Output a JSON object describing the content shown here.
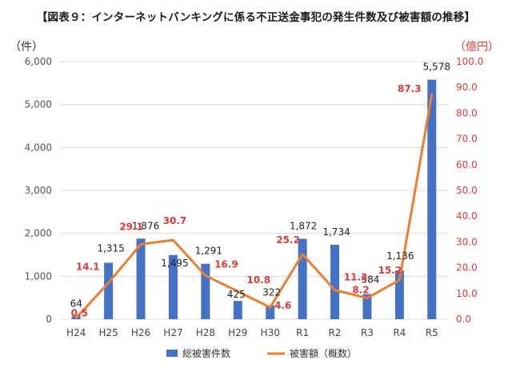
{
  "chart_data": {
    "type": "bar+line",
    "title": "【図表９：インターネットバンキングに係る不正送金事犯の発生件数及び被害額の推移】",
    "categories": [
      "H24",
      "H25",
      "H26",
      "H27",
      "H28",
      "H29",
      "H30",
      "R1",
      "R2",
      "R3",
      "R4",
      "R5"
    ],
    "series": [
      {
        "name": "総被害件数",
        "type": "bar",
        "axis": "left",
        "color": "#4472c4",
        "values": [
          64,
          1315,
          1876,
          1495,
          1291,
          425,
          322,
          1872,
          1734,
          584,
          1136,
          5578
        ],
        "labels": [
          "64",
          "1,315",
          "1,876",
          "1,495",
          "1,291",
          "425",
          "322",
          "1,872",
          "1,734",
          "584",
          "1,136",
          "5,578"
        ]
      },
      {
        "name": "被害額（概数）",
        "type": "line",
        "axis": "right",
        "color": "#ed7d31",
        "values": [
          0.5,
          14.1,
          29.1,
          30.7,
          16.9,
          10.8,
          4.6,
          25.2,
          11.3,
          8.2,
          15.2,
          87.3
        ],
        "labels": [
          "0.5",
          "14.1",
          "29.1",
          "30.7",
          "16.9",
          "10.8",
          "4.6",
          "25.2",
          "11.3",
          "8.2",
          "15.2",
          "87.3"
        ]
      }
    ],
    "left_axis": {
      "unit": "（件）",
      "ylim": [
        0,
        6000
      ],
      "ticks": [
        "0",
        "1,000",
        "2,000",
        "3,000",
        "4,000",
        "5,000",
        "6,000"
      ]
    },
    "right_axis": {
      "unit": "（億円）",
      "ylim": [
        0,
        100
      ],
      "ticks": [
        "0.0",
        "10.0",
        "20.0",
        "30.0",
        "40.0",
        "50.0",
        "60.0",
        "70.0",
        "80.0",
        "90.0",
        "100.0"
      ],
      "color": "#e23a3a"
    },
    "grid": true,
    "legend": "bottom"
  }
}
